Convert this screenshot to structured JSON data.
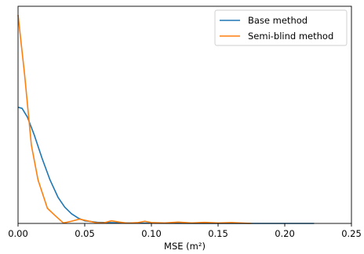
{
  "chart_data": {
    "type": "line",
    "xlabel": "MSE (m²)",
    "ylabel": "",
    "xlim": [
      0,
      0.25
    ],
    "ylim": [
      0,
      1.0
    ],
    "x_ticks": [
      "0.00",
      "0.05",
      "0.10",
      "0.15",
      "0.20",
      "0.25"
    ],
    "x_tick_values": [
      0,
      0.05,
      0.1,
      0.15,
      0.2,
      0.25
    ],
    "grid": false,
    "legend_position": "top-right",
    "series": [
      {
        "name": "Base method",
        "color": "#1f77b4",
        "points": [
          [
            0.0,
            0.535
          ],
          [
            0.003,
            0.53
          ],
          [
            0.007,
            0.49
          ],
          [
            0.012,
            0.41
          ],
          [
            0.018,
            0.3
          ],
          [
            0.024,
            0.2
          ],
          [
            0.03,
            0.12
          ],
          [
            0.035,
            0.075
          ],
          [
            0.04,
            0.045
          ],
          [
            0.045,
            0.025
          ],
          [
            0.05,
            0.012
          ],
          [
            0.06,
            0.005
          ],
          [
            0.08,
            0.002
          ],
          [
            0.1,
            0.001
          ],
          [
            0.15,
            0.0
          ],
          [
            0.2,
            0.0
          ],
          [
            0.222,
            0.0
          ]
        ]
      },
      {
        "name": "Semi-blind method",
        "color": "#ff7f0e",
        "points": [
          [
            0.0,
            0.96
          ],
          [
            0.005,
            0.68
          ],
          [
            0.01,
            0.36
          ],
          [
            0.015,
            0.2
          ],
          [
            0.022,
            0.07
          ],
          [
            0.028,
            0.035
          ],
          [
            0.034,
            0.002
          ],
          [
            0.04,
            0.01
          ],
          [
            0.046,
            0.02
          ],
          [
            0.052,
            0.012
          ],
          [
            0.058,
            0.004
          ],
          [
            0.064,
            0.002
          ],
          [
            0.07,
            0.012
          ],
          [
            0.076,
            0.006
          ],
          [
            0.082,
            0.001
          ],
          [
            0.09,
            0.004
          ],
          [
            0.095,
            0.01
          ],
          [
            0.1,
            0.004
          ],
          [
            0.11,
            0.002
          ],
          [
            0.12,
            0.006
          ],
          [
            0.13,
            0.002
          ],
          [
            0.14,
            0.005
          ],
          [
            0.15,
            0.002
          ],
          [
            0.16,
            0.004
          ],
          [
            0.17,
            0.001
          ],
          [
            0.175,
            0.0
          ]
        ]
      }
    ]
  }
}
